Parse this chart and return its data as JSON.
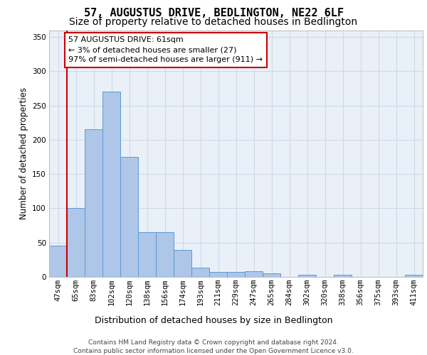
{
  "title": "57, AUGUSTUS DRIVE, BEDLINGTON, NE22 6LF",
  "subtitle": "Size of property relative to detached houses in Bedlington",
  "xlabel": "Distribution of detached houses by size in Bedlington",
  "ylabel": "Number of detached properties",
  "categories": [
    "47sqm",
    "65sqm",
    "83sqm",
    "102sqm",
    "120sqm",
    "138sqm",
    "156sqm",
    "174sqm",
    "193sqm",
    "211sqm",
    "229sqm",
    "247sqm",
    "265sqm",
    "284sqm",
    "302sqm",
    "320sqm",
    "338sqm",
    "356sqm",
    "375sqm",
    "393sqm",
    "411sqm"
  ],
  "values": [
    46,
    101,
    215,
    270,
    175,
    65,
    65,
    39,
    13,
    7,
    7,
    8,
    5,
    0,
    3,
    0,
    3,
    0,
    0,
    0,
    3
  ],
  "bar_color": "#aec6e8",
  "bar_edge_color": "#5b9bd5",
  "highlight_line_color": "#cc0000",
  "annotation_text": "57 AUGUSTUS DRIVE: 61sqm\n← 3% of detached houses are smaller (27)\n97% of semi-detached houses are larger (911) →",
  "annotation_box_color": "#ffffff",
  "annotation_box_edge_color": "#cc0000",
  "ylim": [
    0,
    360
  ],
  "yticks": [
    0,
    50,
    100,
    150,
    200,
    250,
    300,
    350
  ],
  "grid_color": "#d0d8e8",
  "background_color": "#eaf0f8",
  "footer": "Contains HM Land Registry data © Crown copyright and database right 2024.\nContains public sector information licensed under the Open Government Licence v3.0.",
  "title_fontsize": 11,
  "subtitle_fontsize": 10,
  "xlabel_fontsize": 9,
  "ylabel_fontsize": 8.5,
  "tick_fontsize": 7.5,
  "annotation_fontsize": 8,
  "footer_fontsize": 6.5
}
